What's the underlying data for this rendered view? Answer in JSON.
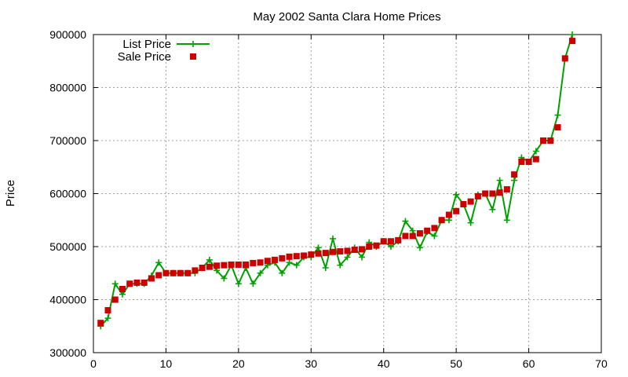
{
  "chart_data": {
    "type": "line",
    "title": "May 2002 Santa Clara Home Prices",
    "xlabel": "",
    "ylabel": "Price",
    "xlim": [
      0,
      70
    ],
    "ylim": [
      300000,
      900000
    ],
    "x_ticks": [
      0,
      10,
      20,
      30,
      40,
      50,
      60,
      70
    ],
    "y_ticks": [
      300000,
      400000,
      500000,
      600000,
      700000,
      800000,
      900000
    ],
    "grid": true,
    "legend": "top-left",
    "series": [
      {
        "name": "List Price",
        "style": "line-with-plus-markers",
        "color": "#00a000",
        "x": [
          1,
          2,
          3,
          4,
          5,
          6,
          7,
          8,
          9,
          10,
          11,
          12,
          13,
          14,
          15,
          16,
          17,
          18,
          19,
          20,
          21,
          22,
          23,
          24,
          25,
          26,
          27,
          28,
          29,
          30,
          31,
          32,
          33,
          34,
          35,
          36,
          37,
          38,
          39,
          40,
          41,
          42,
          43,
          44,
          45,
          46,
          47,
          48,
          49,
          50,
          51,
          52,
          53,
          54,
          55,
          56,
          57,
          58,
          59,
          60,
          61,
          62,
          63,
          64,
          65,
          66
        ],
        "values": [
          350000,
          365000,
          430000,
          410000,
          430000,
          430000,
          430000,
          445000,
          470000,
          450000,
          450000,
          450000,
          450000,
          450000,
          460000,
          475000,
          455000,
          440000,
          465000,
          430000,
          460000,
          430000,
          450000,
          465000,
          470000,
          450000,
          470000,
          465000,
          480000,
          480000,
          498000,
          460000,
          515000,
          465000,
          480000,
          498000,
          480000,
          508000,
          500000,
          510000,
          500000,
          510000,
          548000,
          530000,
          498000,
          528000,
          520000,
          550000,
          550000,
          598000,
          580000,
          545000,
          598000,
          600000,
          570000,
          625000,
          550000,
          625000,
          668000,
          660000,
          680000,
          700000,
          700000,
          748000,
          855000,
          900000
        ]
      },
      {
        "name": "Sale Price",
        "style": "square-markers",
        "color": "#cc0000",
        "x": [
          1,
          2,
          3,
          4,
          5,
          6,
          7,
          8,
          9,
          10,
          11,
          12,
          13,
          14,
          15,
          16,
          17,
          18,
          19,
          20,
          21,
          22,
          23,
          24,
          25,
          26,
          27,
          28,
          29,
          30,
          31,
          32,
          33,
          34,
          35,
          36,
          37,
          38,
          39,
          40,
          41,
          42,
          43,
          44,
          45,
          46,
          47,
          48,
          49,
          50,
          51,
          52,
          53,
          54,
          55,
          56,
          57,
          58,
          59,
          60,
          61,
          62,
          63,
          64,
          65,
          66
        ],
        "values": [
          356000,
          380000,
          400000,
          420000,
          430000,
          432000,
          432000,
          440000,
          446000,
          450000,
          450000,
          450000,
          450000,
          455000,
          460000,
          462000,
          464000,
          465000,
          466000,
          466000,
          466000,
          469000,
          470000,
          473000,
          475000,
          478000,
          481000,
          482000,
          483000,
          485000,
          487000,
          488000,
          490000,
          491000,
          492000,
          494000,
          495000,
          500000,
          502000,
          510000,
          510000,
          512000,
          520000,
          520000,
          525000,
          530000,
          535000,
          550000,
          560000,
          567000,
          580000,
          585000,
          595000,
          600000,
          600000,
          602000,
          608000,
          636000,
          660000,
          660000,
          665000,
          700000,
          700000,
          725000,
          855000,
          888000
        ]
      }
    ]
  }
}
